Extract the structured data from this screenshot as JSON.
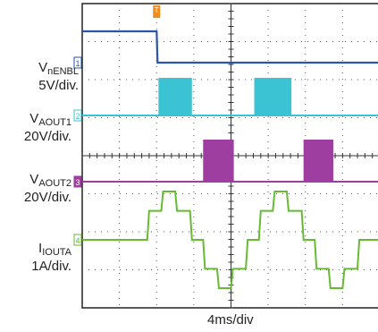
{
  "chart_data": {
    "type": "line",
    "xlim": [
      0,
      32
    ],
    "x_unit": "ms",
    "grid": true,
    "time_scale": "4ms/div",
    "channels": [
      {
        "id": "1",
        "label_main": "V",
        "label_sub": "nENBL",
        "scale": "5V/div.",
        "color": "#2a55a8",
        "units": "V",
        "ylim": [
          -24,
          6
        ],
        "points": [
          [
            0,
            5
          ],
          [
            8,
            5
          ],
          [
            8.1,
            0
          ],
          [
            32,
            0
          ]
        ]
      },
      {
        "id": "2",
        "label_main": "V",
        "label_sub": "AOUT1",
        "scale": "20V/div.",
        "color": "#3cc3d3",
        "units": "V",
        "pwm_bursts": [
          [
            8.2,
            11.8
          ],
          [
            18.5,
            22.5
          ]
        ],
        "burst_amplitude": 34
      },
      {
        "id": "3",
        "label_main": "V",
        "label_sub": "AOUT2",
        "scale": "20V/div.",
        "color": "#9e3ea1",
        "units": "V",
        "pwm_bursts": [
          [
            13.0,
            16.3
          ],
          [
            23.8,
            27.0
          ]
        ],
        "burst_amplitude": 34
      },
      {
        "id": "4",
        "label_main": "I",
        "label_sub": "IOUTA",
        "scale": "1A/div.",
        "color": "#66bb33",
        "units": "A",
        "points": [
          [
            0,
            0
          ],
          [
            7,
            0
          ],
          [
            7.2,
            1.2
          ],
          [
            8.5,
            1.2
          ],
          [
            8.7,
            2.0
          ],
          [
            10.0,
            2.0
          ],
          [
            10.2,
            1.2
          ],
          [
            11.6,
            1.2
          ],
          [
            11.8,
            0
          ],
          [
            13.0,
            0
          ],
          [
            13.2,
            -1.2
          ],
          [
            14.5,
            -1.2
          ],
          [
            14.7,
            -2.0
          ],
          [
            16.0,
            -2.0
          ],
          [
            16.2,
            -1.2
          ],
          [
            17.6,
            -1.2
          ],
          [
            17.8,
            0
          ],
          [
            19.0,
            0
          ],
          [
            19.2,
            1.2
          ],
          [
            20.5,
            1.2
          ],
          [
            20.7,
            2.0
          ],
          [
            22.0,
            2.0
          ],
          [
            22.2,
            1.2
          ],
          [
            23.6,
            1.2
          ],
          [
            23.8,
            0
          ],
          [
            25.0,
            0
          ],
          [
            25.2,
            -1.2
          ],
          [
            26.5,
            -1.2
          ],
          [
            26.7,
            -2.0
          ],
          [
            28.0,
            -2.0
          ],
          [
            28.2,
            -1.2
          ],
          [
            29.6,
            -1.2
          ],
          [
            29.8,
            0
          ],
          [
            32,
            0
          ]
        ]
      }
    ]
  },
  "trigger_marker": "T"
}
